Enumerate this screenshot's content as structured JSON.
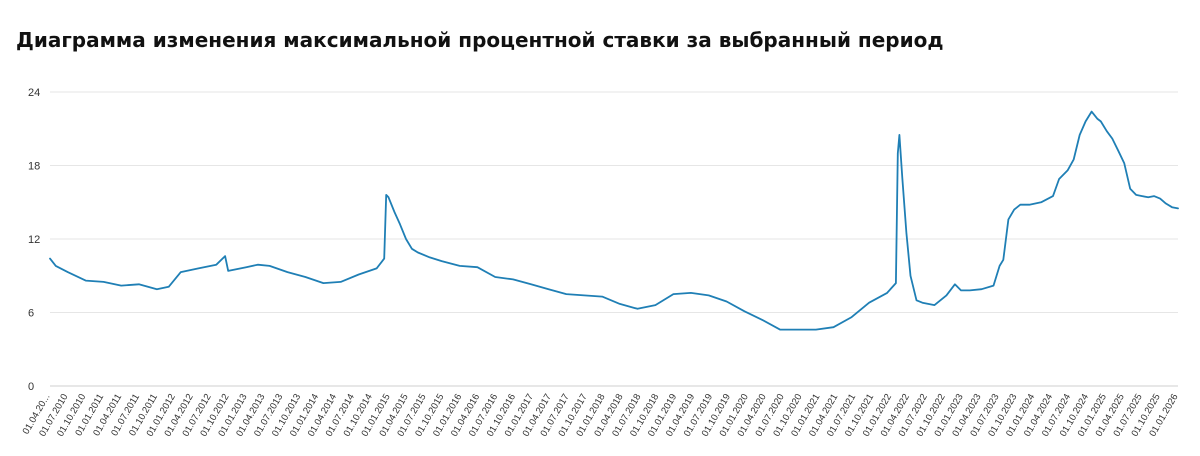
{
  "chart_data": {
    "type": "line",
    "title": "Диаграмма изменения максимальной процентной ставки за выбранный период",
    "xlabel": "",
    "ylabel": "",
    "ylim": [
      0,
      24
    ],
    "y_ticks": [
      0,
      6,
      12,
      18,
      24
    ],
    "grid": true,
    "legend": "none",
    "line_color": "#1f7fb5",
    "x_tick_labels": [
      "01.04.20...",
      "01.07.2010",
      "01.10.2010",
      "01.01.2011",
      "01.04.2011",
      "01.07.2011",
      "01.10.2011",
      "01.01.2012",
      "01.04.2012",
      "01.07.2012",
      "01.10.2012",
      "01.01.2013",
      "01.04.2013",
      "01.07.2013",
      "01.10.2013",
      "01.01.2014",
      "01.04.2014",
      "01.07.2014",
      "01.10.2014",
      "01.01.2015",
      "01.04.2015",
      "01.07.2015",
      "01.10.2015",
      "01.01.2016",
      "01.04.2016",
      "01.07.2016",
      "01.10.2016",
      "01.01.2017",
      "01.04.2017",
      "01.07.2017",
      "01.10.2017",
      "01.01.2018",
      "01.04.2018",
      "01.07.2018",
      "01.10.2018",
      "01.01.2019",
      "01.04.2019",
      "01.07.2019",
      "01.10.2019",
      "01.01.2020",
      "01.04.2020",
      "01.07.2020",
      "01.10.2020",
      "01.01.2021",
      "01.04.2021",
      "01.07.2021",
      "01.10.2021",
      "01.01.2022",
      "01.04.2022",
      "01.07.2022",
      "01.10.2022",
      "01.01.2023",
      "01.04.2023",
      "01.07.2023",
      "01.10.2023",
      "01.01.2024",
      "01.04.2024",
      "01.07.2024",
      "01.10.2024",
      "01.01.2025",
      "01.04.2025",
      "01.07.2025",
      "01.10.2025",
      "01.01.2026"
    ],
    "series": [
      {
        "x": [
          "2010-04-01",
          "2010-05-01",
          "2010-07-01",
          "2010-10-01",
          "2011-01-01",
          "2011-04-01",
          "2011-07-01",
          "2011-10-01",
          "2011-12-01",
          "2012-02-01",
          "2012-05-01",
          "2012-08-01",
          "2012-09-15",
          "2012-10-01",
          "2013-01-01",
          "2013-03-01",
          "2013-05-01",
          "2013-08-01",
          "2013-11-01",
          "2014-02-01",
          "2014-05-01",
          "2014-08-01",
          "2014-11-01",
          "2014-12-10",
          "2014-12-20",
          "2015-01-01",
          "2015-02-01",
          "2015-03-01",
          "2015-04-01",
          "2015-05-01",
          "2015-06-01",
          "2015-08-01",
          "2015-10-01",
          "2016-01-01",
          "2016-04-01",
          "2016-07-01",
          "2016-10-01",
          "2017-01-01",
          "2017-04-01",
          "2017-07-01",
          "2017-10-01",
          "2018-01-01",
          "2018-04-01",
          "2018-07-01",
          "2018-10-01",
          "2019-01-01",
          "2019-04-01",
          "2019-07-01",
          "2019-10-01",
          "2020-01-01",
          "2020-04-01",
          "2020-07-01",
          "2020-10-01",
          "2021-01-01",
          "2021-04-01",
          "2021-07-01",
          "2021-10-01",
          "2022-01-01",
          "2022-02-15",
          "2022-02-25",
          "2022-03-05",
          "2022-03-20",
          "2022-04-10",
          "2022-05-01",
          "2022-06-01",
          "2022-07-01",
          "2022-09-01",
          "2022-11-01",
          "2022-12-15",
          "2023-01-15",
          "2023-03-01",
          "2023-05-01",
          "2023-07-01",
          "2023-08-01",
          "2023-08-20",
          "2023-09-15",
          "2023-10-15",
          "2023-11-15",
          "2024-01-01",
          "2024-03-01",
          "2024-05-01",
          "2024-06-01",
          "2024-07-15",
          "2024-08-15",
          "2024-09-15",
          "2024-10-15",
          "2024-11-15",
          "2024-12-15",
          "2025-01-01",
          "2025-02-01",
          "2025-03-01",
          "2025-04-01",
          "2025-05-01",
          "2025-06-01",
          "2025-07-01",
          "2025-08-01",
          "2025-09-01",
          "2025-10-01",
          "2025-11-01",
          "2025-12-01",
          "2026-01-01",
          "2026-02-01"
        ],
        "y": [
          10.4,
          9.8,
          9.3,
          8.6,
          8.5,
          8.2,
          8.3,
          7.9,
          8.1,
          9.3,
          9.6,
          9.9,
          10.6,
          9.4,
          9.7,
          9.9,
          9.8,
          9.3,
          8.9,
          8.4,
          8.5,
          9.1,
          9.6,
          10.4,
          15.6,
          15.4,
          14.2,
          13.2,
          12.0,
          11.2,
          10.9,
          10.5,
          10.2,
          9.8,
          9.7,
          8.9,
          8.7,
          8.3,
          7.9,
          7.5,
          7.4,
          7.3,
          6.7,
          6.3,
          6.6,
          7.5,
          7.6,
          7.4,
          6.9,
          6.1,
          5.4,
          4.6,
          4.6,
          4.6,
          4.8,
          5.6,
          6.8,
          7.6,
          8.4,
          19.0,
          20.5,
          17.0,
          12.5,
          9.0,
          7.0,
          6.8,
          6.6,
          7.4,
          8.3,
          7.8,
          7.8,
          7.9,
          8.2,
          9.8,
          10.3,
          13.6,
          14.4,
          14.8,
          14.8,
          15.0,
          15.5,
          16.9,
          17.6,
          18.5,
          20.5,
          21.6,
          22.4,
          21.8,
          21.6,
          20.8,
          20.2,
          19.2,
          18.2,
          16.1,
          15.6,
          15.5,
          15.4,
          15.5,
          15.3,
          14.9,
          14.6,
          14.5
        ]
      }
    ]
  }
}
